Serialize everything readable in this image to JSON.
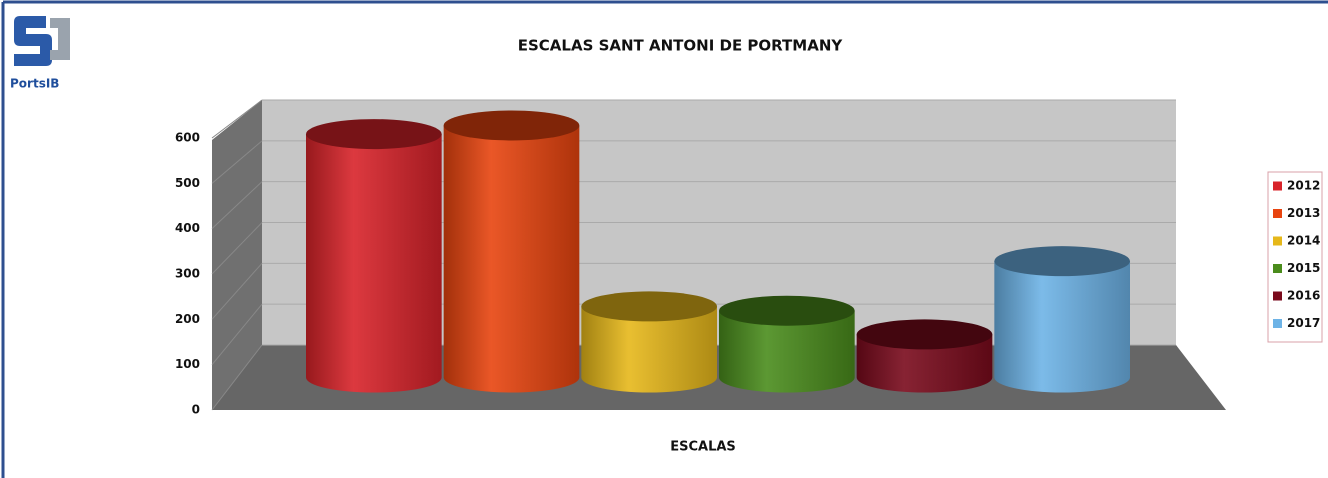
{
  "logo": "PortsIB",
  "chart_data": {
    "type": "cylinder",
    "title": "ESCALAS SANT ANTONI DE PORTMANY",
    "categories": [
      "ESCALAS"
    ],
    "series": [
      {
        "name": "2012",
        "color": "#d8232a",
        "values": [
          565
        ]
      },
      {
        "name": "2013",
        "color": "#e8440f",
        "values": [
          585
        ]
      },
      {
        "name": "2014",
        "color": "#e6b81a",
        "values": [
          165
        ]
      },
      {
        "name": "2015",
        "color": "#4a8c1c",
        "values": [
          155
        ]
      },
      {
        "name": "2016",
        "color": "#7a0a1c",
        "values": [
          100
        ]
      },
      {
        "name": "2017",
        "color": "#6db3e6",
        "values": [
          270
        ]
      }
    ],
    "ylim": [
      0,
      600
    ],
    "yticks": [
      0,
      100,
      200,
      300,
      400,
      500,
      600
    ],
    "grid": true,
    "legend": "right"
  }
}
